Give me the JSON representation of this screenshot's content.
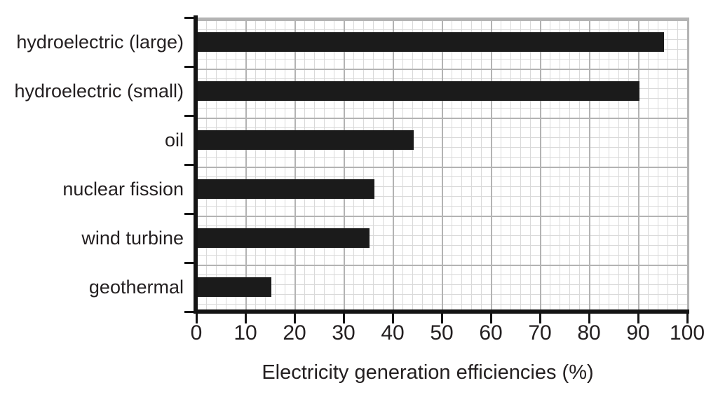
{
  "page": {
    "background": "#ffffff"
  },
  "chart_data": {
    "type": "bar",
    "orientation": "horizontal",
    "title": "",
    "xlabel": "Electricity generation efficiencies (%)",
    "ylabel": "",
    "categories": [
      "hydroelectric (large)",
      "hydroelectric (small)",
      "oil",
      "nuclear fission",
      "wind turbine",
      "geothermal"
    ],
    "values": [
      95,
      90,
      44,
      36,
      35,
      15
    ],
    "xlim": [
      0,
      100
    ],
    "x_ticks": [
      0,
      10,
      20,
      30,
      40,
      50,
      60,
      70,
      80,
      90,
      100
    ],
    "grid": "on",
    "legend": "none",
    "bar_color": "#1b1b1b",
    "axis_color": "#141414",
    "grid_minor_color": "#d9d9d9",
    "grid_major_color": "#b3b3b3",
    "text_color": "#231f20"
  }
}
